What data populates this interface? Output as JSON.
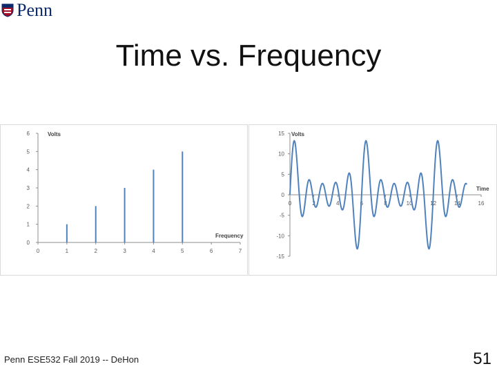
{
  "header": {
    "logo_text": "Penn"
  },
  "title": "Time vs. Frequency",
  "footer": {
    "course": "Penn ESE532 Fall 2019 -- DeHon",
    "page_number": "51"
  },
  "chart_data": [
    {
      "type": "bar",
      "title": "",
      "ylabel": "Volts",
      "xlabel": "Frequency",
      "x_ticks": [
        0,
        1,
        2,
        3,
        4,
        5,
        6,
        7
      ],
      "y_ticks": [
        0,
        1,
        2,
        3,
        4,
        5,
        6
      ],
      "xlim": [
        0,
        7
      ],
      "ylim": [
        0,
        6
      ],
      "grid": false,
      "color": "#4f81bd",
      "x": [
        1,
        2,
        3,
        4,
        5
      ],
      "values": [
        1,
        2,
        3,
        4,
        5
      ]
    },
    {
      "type": "line",
      "title": "",
      "ylabel": "Volts",
      "xlabel": "Time",
      "x_ticks": [
        0,
        2,
        4,
        6,
        8,
        10,
        12,
        14,
        16
      ],
      "y_ticks": [
        -15,
        -10,
        -5,
        0,
        5,
        10,
        15
      ],
      "xlim": [
        0,
        16
      ],
      "ylim": [
        -15,
        15
      ],
      "grid": false,
      "color": "#4f81bd",
      "series": [
        {
          "function": "sum of k*sin(k*pi*t/3) for k=1..5",
          "x_range": [
            0,
            14.8
          ],
          "sample_step": 0.04
        }
      ]
    }
  ]
}
